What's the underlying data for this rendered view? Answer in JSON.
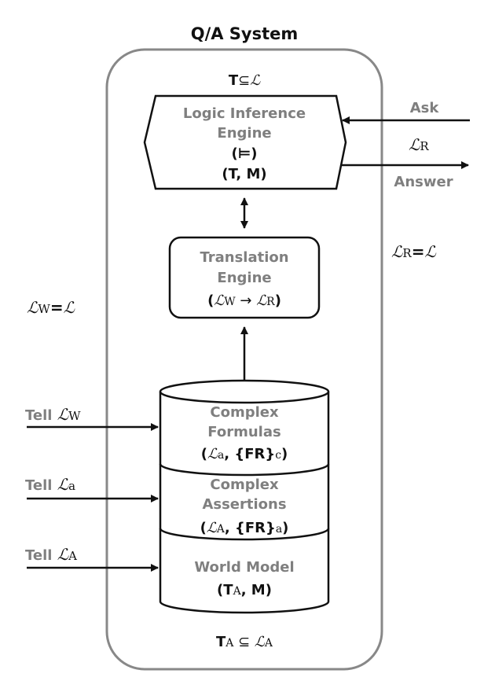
{
  "title": "Q/A System",
  "theory_top": {
    "T": "T",
    "subset": "⊆",
    "L": "ℒ"
  },
  "inference_engine": {
    "line1": "Logic Inference",
    "line2": "Engine",
    "line3": "(⊨)",
    "line4": "(T, M)"
  },
  "ask_label": "Ask",
  "answer_lang": {
    "L": "ℒ",
    "sub": "R"
  },
  "answer_label": "Answer",
  "lr_equation": {
    "L1": "ℒ",
    "sub": "R",
    "eq": "=",
    "L2": "ℒ"
  },
  "translation_engine": {
    "line1": "Translation",
    "line2": "Engine",
    "line3": {
      "open": "(",
      "L1": "ℒ",
      "sub1": "W",
      "arrow": " → ",
      "L2": "ℒ",
      "sub2": "R",
      "close": ")"
    }
  },
  "lw_equation": {
    "L1": "ℒ",
    "sub": "W",
    "eq": "=",
    "L2": "ℒ"
  },
  "tell_inputs": [
    {
      "label": "Tell",
      "L": "ℒ",
      "sub": "W"
    },
    {
      "label": "Tell",
      "L": "ℒ",
      "sub": "a"
    },
    {
      "label": "Tell",
      "L": "ℒ",
      "sub": "A"
    }
  ],
  "database": {
    "section1": {
      "line1": "Complex",
      "line2": "Formulas",
      "line3": {
        "open": "(",
        "L": "ℒ",
        "sub": "a",
        "mid": ", {FR}",
        "sub2": "c",
        "close": ")"
      }
    },
    "section2": {
      "line1": "Complex",
      "line2": "Assertions",
      "line3": {
        "open": "(",
        "L": "ℒ",
        "sub": "A",
        "mid": ", {FR}",
        "sub2": "a",
        "close": ")"
      }
    },
    "section3": {
      "line1": "World Model",
      "line2": {
        "open": "(T",
        "sub": "A",
        "rest": ", M)"
      }
    }
  },
  "theory_bottom": {
    "T": "T",
    "sub1": "A",
    "subset": " ⊆ ",
    "L": "ℒ",
    "sub2": "A"
  }
}
